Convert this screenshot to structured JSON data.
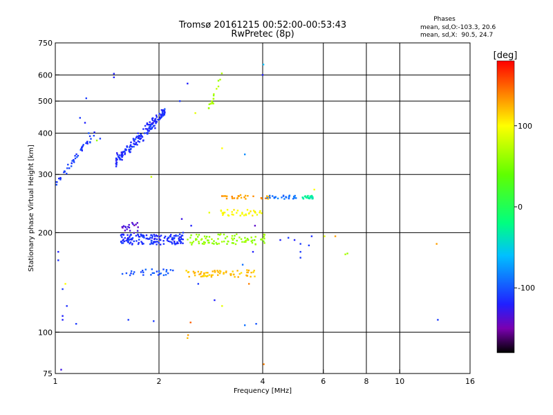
{
  "chart_data": {
    "type": "scatter",
    "title": "Tromsø 20161215 00:52:00-00:53:43",
    "subtitle": "RwPretec (8p)",
    "xlabel": "Frequency [MHz]",
    "ylabel": "Stationary phase Virtual Height [km]",
    "x_scale": "log",
    "y_scale": "log",
    "xlim": [
      1,
      16
    ],
    "ylim": [
      75,
      750
    ],
    "grid": true,
    "x_ticks": [
      {
        "value": 1,
        "label": "1"
      },
      {
        "value": 2,
        "label": "2"
      },
      {
        "value": 4,
        "label": "4"
      },
      {
        "value": 6,
        "label": "6"
      },
      {
        "value": 8,
        "label": "8"
      },
      {
        "value": 10,
        "label": "10"
      },
      {
        "value": 16,
        "label": "16"
      }
    ],
    "y_ticks": [
      {
        "value": 75,
        "label": "75"
      },
      {
        "value": 100,
        "label": "100"
      },
      {
        "value": 200,
        "label": "200"
      },
      {
        "value": 300,
        "label": "300"
      },
      {
        "value": 400,
        "label": "400"
      },
      {
        "value": 500,
        "label": "500"
      },
      {
        "value": 600,
        "label": "600"
      },
      {
        "value": 750,
        "label": "750"
      }
    ],
    "x_grid": [
      1,
      2,
      4,
      6,
      8,
      10,
      16
    ],
    "y_grid": [
      100,
      200,
      300,
      400,
      500,
      600
    ],
    "legend": {
      "title": "Phases",
      "lines": [
        "mean, sd,O:-103.3, 20.6",
        "mean, sd,X:  90.5, 24.7"
      ],
      "placement": "top-right"
    },
    "colorbar": {
      "label": "[deg]",
      "min": -180,
      "max": 180,
      "ticks": [
        {
          "value": 100,
          "label": "100"
        },
        {
          "value": 0,
          "label": "0"
        },
        {
          "value": -100,
          "label": "-100"
        }
      ],
      "stops": [
        {
          "value": -180,
          "color": "#000000"
        },
        {
          "value": -150,
          "color": "#7a00b0"
        },
        {
          "value": -120,
          "color": "#2020ff"
        },
        {
          "value": -60,
          "color": "#00c0ff"
        },
        {
          "value": -20,
          "color": "#00ff80"
        },
        {
          "value": 40,
          "color": "#60ff00"
        },
        {
          "value": 100,
          "color": "#ffff00"
        },
        {
          "value": 140,
          "color": "#ff8000"
        },
        {
          "value": 180,
          "color": "#ff0000"
        }
      ]
    },
    "clusters": [
      {
        "x": [
          1.0,
          1.3
        ],
        "y": [
          280,
          400
        ],
        "phase": -110,
        "n": 45,
        "spread": 0.04,
        "trend": "rise"
      },
      {
        "x": [
          1.5,
          2.1
        ],
        "y": [
          330,
          470
        ],
        "phase": -115,
        "n": 170,
        "spread": 0.06,
        "trend": "rise"
      },
      {
        "x": [
          2.75,
          3.05
        ],
        "y": [
          450,
          600
        ],
        "phase": 70,
        "n": 18,
        "spread": 0.05,
        "trend": "rise"
      },
      {
        "x": [
          1.55,
          2.35
        ],
        "y": [
          184,
          198
        ],
        "phase": -115,
        "n": 150,
        "spread": 0.01,
        "trend": "flat"
      },
      {
        "x": [
          2.4,
          4.1
        ],
        "y": [
          184,
          198
        ],
        "phase": 60,
        "n": 85,
        "spread": 0.01,
        "trend": "flat"
      },
      {
        "x": [
          1.55,
          2.2
        ],
        "y": [
          148,
          155
        ],
        "phase": -100,
        "n": 30,
        "spread": 0.01,
        "trend": "flat"
      },
      {
        "x": [
          2.4,
          3.8
        ],
        "y": [
          147,
          154
        ],
        "phase": 120,
        "n": 65,
        "spread": 0.01,
        "trend": "flat"
      },
      {
        "x": [
          3.0,
          4.0
        ],
        "y": [
          225,
          235
        ],
        "phase": 100,
        "n": 35,
        "spread": 0.01,
        "trend": "flat"
      },
      {
        "x": [
          3.0,
          4.2
        ],
        "y": [
          253,
          260
        ],
        "phase": 130,
        "n": 30,
        "spread": 0.01,
        "trend": "flat"
      },
      {
        "x": [
          4.1,
          5.0
        ],
        "y": [
          253,
          259
        ],
        "phase": -90,
        "n": 25,
        "spread": 0.01,
        "trend": "flat"
      },
      {
        "x": [
          5.2,
          5.6
        ],
        "y": [
          253,
          259
        ],
        "phase": -30,
        "n": 22,
        "spread": 0.01,
        "trend": "flat"
      },
      {
        "x": [
          1.55,
          1.75
        ],
        "y": [
          200,
          215
        ],
        "phase": -135,
        "n": 20,
        "spread": 0.02,
        "trend": "flat"
      }
    ],
    "points": [
      {
        "x": 1.48,
        "y": 605,
        "phase": -120
      },
      {
        "x": 1.48,
        "y": 590,
        "phase": -120
      },
      {
        "x": 1.23,
        "y": 510,
        "phase": -110
      },
      {
        "x": 4.02,
        "y": 645,
        "phase": -60
      },
      {
        "x": 4.0,
        "y": 600,
        "phase": -120
      },
      {
        "x": 2.42,
        "y": 565,
        "phase": -120
      },
      {
        "x": 2.3,
        "y": 500,
        "phase": -110
      },
      {
        "x": 2.55,
        "y": 460,
        "phase": 90
      },
      {
        "x": 3.05,
        "y": 360,
        "phase": 100
      },
      {
        "x": 3.55,
        "y": 345,
        "phase": -80
      },
      {
        "x": 1.9,
        "y": 295,
        "phase": 80
      },
      {
        "x": 1.02,
        "y": 175,
        "phase": -120
      },
      {
        "x": 1.02,
        "y": 165,
        "phase": -115
      },
      {
        "x": 1.05,
        "y": 135,
        "phase": -110
      },
      {
        "x": 1.08,
        "y": 120,
        "phase": -115
      },
      {
        "x": 1.05,
        "y": 112,
        "phase": -120
      },
      {
        "x": 1.05,
        "y": 109,
        "phase": -120
      },
      {
        "x": 1.15,
        "y": 106,
        "phase": -110
      },
      {
        "x": 1.07,
        "y": 140,
        "phase": 100
      },
      {
        "x": 1.63,
        "y": 109,
        "phase": -110
      },
      {
        "x": 1.93,
        "y": 108,
        "phase": -110
      },
      {
        "x": 2.47,
        "y": 107,
        "phase": 150
      },
      {
        "x": 2.43,
        "y": 98,
        "phase": 130
      },
      {
        "x": 2.42,
        "y": 96,
        "phase": 120
      },
      {
        "x": 3.55,
        "y": 105,
        "phase": -90
      },
      {
        "x": 3.83,
        "y": 106,
        "phase": -100
      },
      {
        "x": 4.03,
        "y": 80,
        "phase": 140
      },
      {
        "x": 1.04,
        "y": 77,
        "phase": -130
      },
      {
        "x": 2.33,
        "y": 220,
        "phase": -130
      },
      {
        "x": 2.48,
        "y": 210,
        "phase": -120
      },
      {
        "x": 2.35,
        "y": 200,
        "phase": -110
      },
      {
        "x": 3.8,
        "y": 210,
        "phase": -140
      },
      {
        "x": 3.75,
        "y": 175,
        "phase": -120
      },
      {
        "x": 3.5,
        "y": 160,
        "phase": -90
      },
      {
        "x": 3.65,
        "y": 140,
        "phase": 140
      },
      {
        "x": 2.6,
        "y": 140,
        "phase": -110
      },
      {
        "x": 2.9,
        "y": 125,
        "phase": -120
      },
      {
        "x": 3.05,
        "y": 120,
        "phase": 90
      },
      {
        "x": 2.8,
        "y": 230,
        "phase": 90
      },
      {
        "x": 4.5,
        "y": 190,
        "phase": -120
      },
      {
        "x": 4.75,
        "y": 193,
        "phase": -110
      },
      {
        "x": 4.95,
        "y": 190,
        "phase": -120
      },
      {
        "x": 5.15,
        "y": 185,
        "phase": -110
      },
      {
        "x": 5.15,
        "y": 175,
        "phase": -110
      },
      {
        "x": 5.15,
        "y": 168,
        "phase": -110
      },
      {
        "x": 5.55,
        "y": 195,
        "phase": -115
      },
      {
        "x": 5.45,
        "y": 183,
        "phase": -110
      },
      {
        "x": 6.5,
        "y": 195,
        "phase": 130
      },
      {
        "x": 7.05,
        "y": 173,
        "phase": 60
      },
      {
        "x": 6.95,
        "y": 172,
        "phase": 70
      },
      {
        "x": 5.65,
        "y": 270,
        "phase": 100
      },
      {
        "x": 6.05,
        "y": 195,
        "phase": 90
      },
      {
        "x": 12.8,
        "y": 185,
        "phase": 130
      },
      {
        "x": 12.9,
        "y": 109,
        "phase": -110
      },
      {
        "x": 1.32,
        "y": 380,
        "phase": 60
      },
      {
        "x": 1.35,
        "y": 385,
        "phase": -110
      },
      {
        "x": 1.18,
        "y": 445,
        "phase": -110
      },
      {
        "x": 1.22,
        "y": 430,
        "phase": -120
      },
      {
        "x": 1.25,
        "y": 400,
        "phase": -100
      }
    ]
  }
}
